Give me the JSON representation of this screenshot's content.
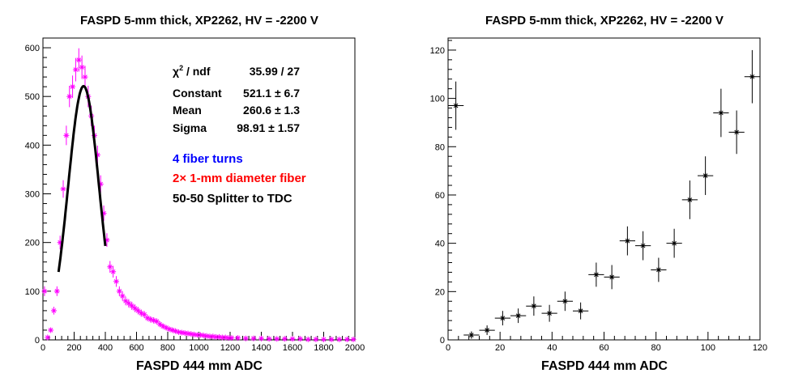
{
  "chart_data": [
    {
      "type": "scatter",
      "title": "FASPD 5-mm thick, XP2262, HV = -2200 V",
      "xlabel": "FASPD 444 mm ADC",
      "ylabel": "",
      "xlim": [
        0,
        2000
      ],
      "ylim": [
        0,
        620
      ],
      "x_ticks": [
        "0",
        "200",
        "400",
        "600",
        "800",
        "1000",
        "1200",
        "1400",
        "1600",
        "1800",
        "2000"
      ],
      "y_ticks": [
        "0",
        "100",
        "200",
        "300",
        "400",
        "500",
        "600"
      ],
      "grid": false,
      "marker_color": "#ff00ff",
      "fit_color": "#000000",
      "histogram": {
        "x": [
          10,
          30,
          50,
          70,
          90,
          110,
          130,
          150,
          170,
          190,
          210,
          230,
          250,
          270,
          290,
          310,
          330,
          350,
          370,
          390,
          410,
          430,
          450,
          470,
          490,
          510,
          530,
          550,
          570,
          590,
          610,
          630,
          650,
          670,
          690,
          710,
          730,
          750,
          770,
          790,
          810,
          830,
          850,
          870,
          890,
          910,
          930,
          950,
          970,
          990,
          1010,
          1030,
          1050,
          1070,
          1090,
          1110,
          1130,
          1150,
          1170,
          1190,
          1210,
          1250,
          1300,
          1350,
          1400,
          1450,
          1500,
          1550,
          1600,
          1650,
          1700,
          1750,
          1800,
          1850,
          1900,
          1950,
          1990
        ],
        "y": [
          100,
          5,
          20,
          60,
          100,
          200,
          310,
          420,
          500,
          520,
          555,
          575,
          560,
          540,
          500,
          460,
          420,
          380,
          320,
          260,
          205,
          150,
          140,
          120,
          100,
          90,
          80,
          75,
          70,
          65,
          60,
          55,
          52,
          45,
          42,
          40,
          38,
          32,
          28,
          25,
          22,
          20,
          18,
          16,
          15,
          14,
          13,
          12,
          11,
          10,
          10,
          9,
          8,
          7,
          7,
          6,
          6,
          5,
          5,
          4,
          4,
          4,
          3,
          3,
          3,
          2,
          2,
          2,
          2,
          2,
          1,
          1,
          1,
          1,
          1,
          1,
          1
        ],
        "yerr": [
          10,
          2,
          4,
          8,
          10,
          14,
          18,
          20,
          22,
          23,
          24,
          24,
          24,
          23,
          22,
          21,
          20,
          19,
          18,
          16,
          14,
          12,
          12,
          11,
          10,
          9.5,
          9,
          8.7,
          8.4,
          8,
          7.7,
          7.4,
          7.2,
          6.7,
          6.5,
          6.3,
          6.2,
          5.7,
          5.3,
          5,
          4.7,
          4.5,
          4.2,
          4,
          3.9,
          3.7,
          3.6,
          3.5,
          3.3,
          3.2,
          3.2,
          3,
          2.8,
          2.6,
          2.6,
          2.4,
          2.4,
          2.2,
          2.2,
          2,
          2,
          2,
          1.7,
          1.7,
          1.7,
          1.4,
          1.4,
          1.4,
          1.4,
          1.4,
          1,
          1,
          1,
          1,
          1,
          1,
          1
        ]
      },
      "fit": {
        "function": "gaus",
        "constant": 521.1,
        "mean": 260.6,
        "sigma": 98.91,
        "range": [
          100,
          400
        ]
      },
      "stats_box": [
        {
          "label_main": "χ",
          "label_sup": "2",
          "label_rest": " / ndf",
          "value": "35.99 / 27"
        },
        {
          "label_main": "Constant",
          "label_sup": "",
          "label_rest": "",
          "value": "521.1 ± 6.7"
        },
        {
          "label_main": "Mean",
          "label_sup": "",
          "label_rest": "",
          "value": "260.6 ± 1.3"
        },
        {
          "label_main": "Sigma",
          "label_sup": "",
          "label_rest": "",
          "value": "98.91 ± 1.57"
        }
      ],
      "annotations": [
        {
          "text": "4 fiber turns",
          "color": "#0000ff"
        },
        {
          "text": "2× 1-mm diameter fiber",
          "color": "#ff0000"
        },
        {
          "text": "50-50 Splitter to TDC",
          "color": "#000000"
        }
      ]
    },
    {
      "type": "scatter",
      "title": "FASPD 5-mm thick, XP2262, HV = -2200 V",
      "xlabel": "FASPD 444 mm ADC",
      "ylabel": "",
      "xlim": [
        0,
        120
      ],
      "ylim": [
        0,
        125
      ],
      "x_ticks": [
        "0",
        "20",
        "40",
        "60",
        "80",
        "100",
        "120"
      ],
      "y_ticks": [
        "0",
        "20",
        "40",
        "60",
        "80",
        "100",
        "120"
      ],
      "grid": false,
      "marker_color": "#000000",
      "points": {
        "x": [
          3,
          9,
          15,
          21,
          27,
          33,
          39,
          45,
          51,
          57,
          63,
          69,
          75,
          81,
          87,
          93,
          99,
          105,
          111,
          117
        ],
        "y": [
          97,
          2,
          4,
          9,
          10,
          14,
          11,
          16,
          12,
          27,
          26,
          41,
          39,
          29,
          40,
          58,
          68,
          94,
          86,
          109
        ],
        "xerr": [
          3,
          3,
          3,
          3,
          3,
          3,
          3,
          3,
          3,
          3,
          3,
          3,
          3,
          3,
          3,
          3,
          3,
          3,
          3,
          3
        ],
        "yerr": [
          10,
          1.5,
          2,
          3,
          3,
          4,
          3.5,
          4,
          3.5,
          5,
          5,
          6,
          6,
          5,
          6,
          8,
          8,
          10,
          9,
          11
        ]
      }
    }
  ]
}
